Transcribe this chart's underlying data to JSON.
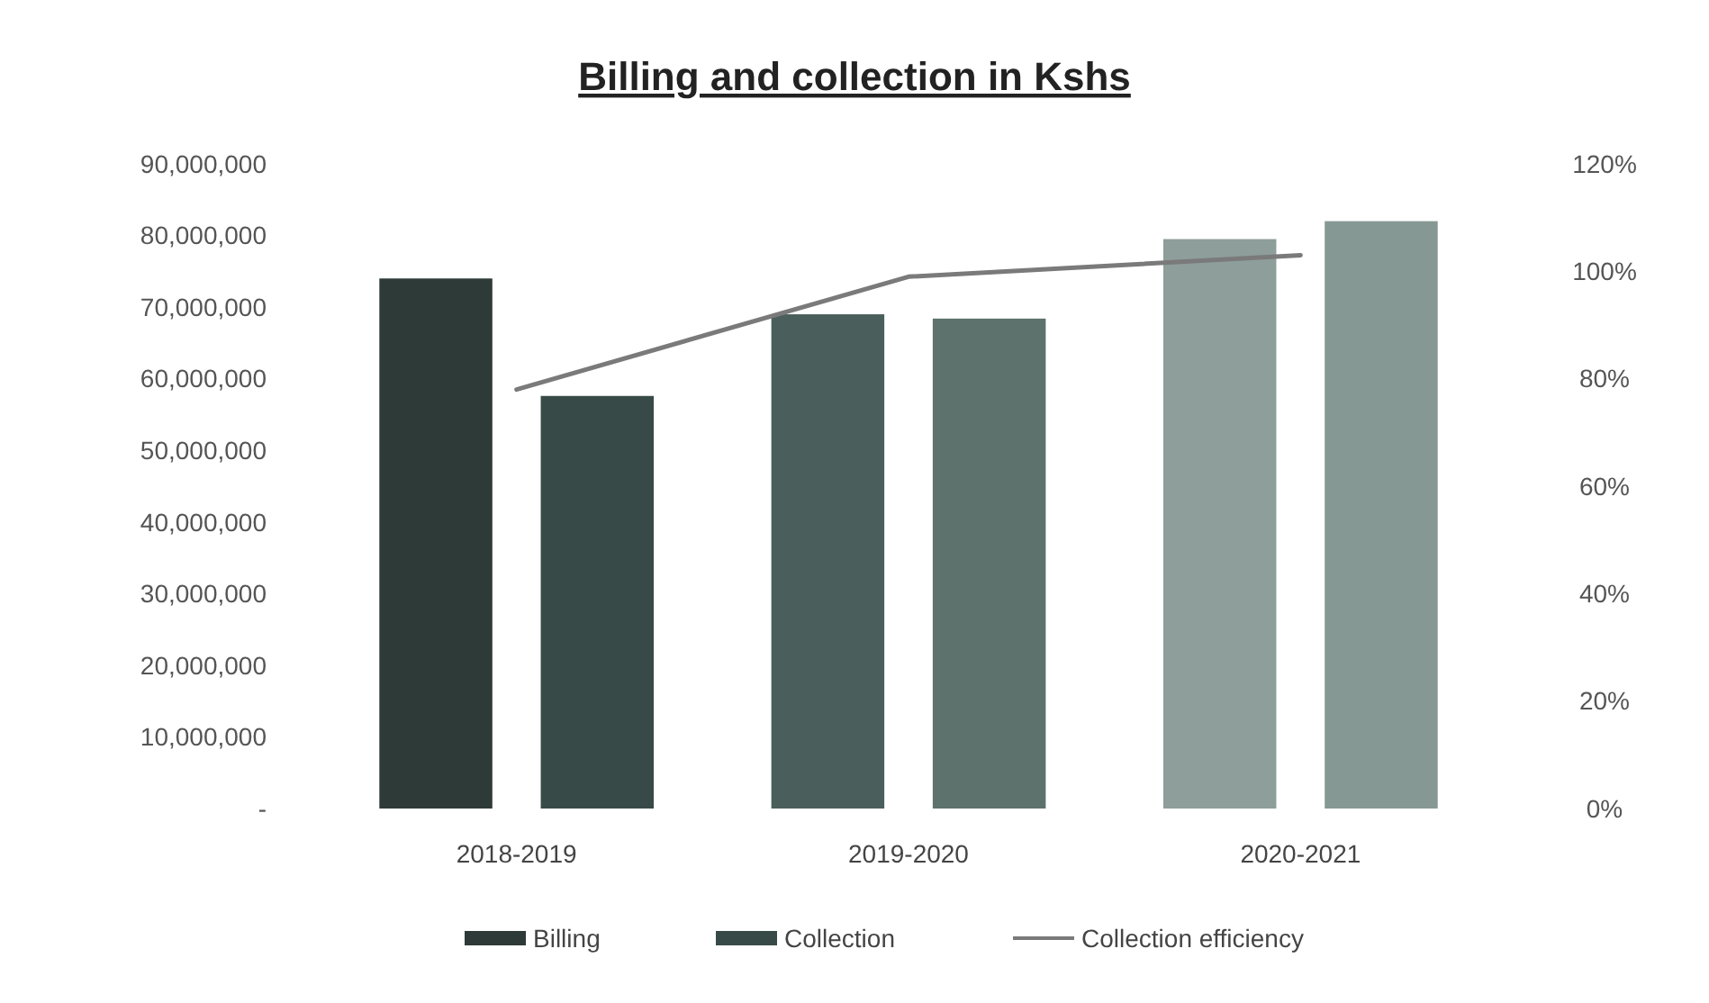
{
  "chart_data": {
    "type": "bar",
    "title": "Billing and collection in Kshs",
    "categories": [
      "2018-2019",
      "2019-2020",
      "2020-2021"
    ],
    "series": [
      {
        "name": "Billing",
        "color": "#2e3a38",
        "colors": [
          "#2e3a38",
          "#4a5f5b",
          "#8e9e9a"
        ],
        "values": [
          74000000,
          69000000,
          79500000
        ]
      },
      {
        "name": "Collection",
        "color": "#384a47",
        "colors": [
          "#384a47",
          "#5d726d",
          "#869893"
        ],
        "values": [
          57600000,
          68400000,
          82000000
        ]
      },
      {
        "name": "Collection efficiency",
        "type": "line",
        "axis": "y2",
        "color": "#7a7a7a",
        "values": [
          78,
          99,
          103
        ]
      }
    ],
    "ylim": [
      0,
      90000000
    ],
    "yticks": [
      {
        "value": 0,
        "label": "-"
      },
      {
        "value": 10000000,
        "label": "10,000,000"
      },
      {
        "value": 20000000,
        "label": "20,000,000"
      },
      {
        "value": 30000000,
        "label": "30,000,000"
      },
      {
        "value": 40000000,
        "label": "40,000,000"
      },
      {
        "value": 50000000,
        "label": "50,000,000"
      },
      {
        "value": 60000000,
        "label": "60,000,000"
      },
      {
        "value": 70000000,
        "label": "70,000,000"
      },
      {
        "value": 80000000,
        "label": "80,000,000"
      },
      {
        "value": 90000000,
        "label": "90,000,000"
      }
    ],
    "y2lim": [
      0,
      120
    ],
    "y2ticks": [
      {
        "value": 0,
        "label": "0%"
      },
      {
        "value": 20,
        "label": "20%"
      },
      {
        "value": 40,
        "label": "40%"
      },
      {
        "value": 60,
        "label": "60%"
      },
      {
        "value": 80,
        "label": "80%"
      },
      {
        "value": 100,
        "label": "100%"
      },
      {
        "value": 120,
        "label": "120%"
      }
    ],
    "legend": "bottom",
    "grid": false,
    "marker": "none"
  }
}
